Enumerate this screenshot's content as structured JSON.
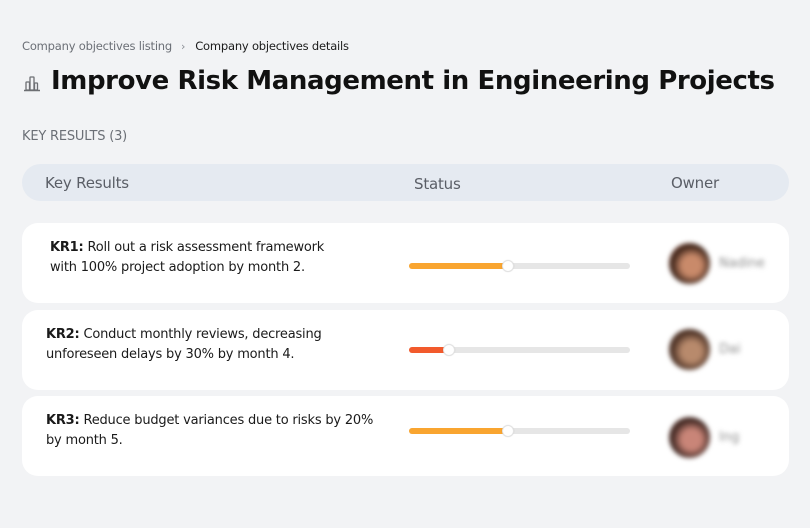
{
  "breadcrumb": {
    "parent": "Company objectives listing",
    "separator": "›",
    "current": "Company objectives details"
  },
  "objective": {
    "icon": "buildings-icon",
    "title": "Improve Risk Management in Engineering Projects"
  },
  "key_results_section": {
    "label": "KEY RESULTS (3)",
    "count": 3
  },
  "table": {
    "columns": [
      "Key Results",
      "Status",
      "Owner"
    ]
  },
  "key_results": [
    {
      "code": "KR1:",
      "text": " Roll out a risk assessment framework with 100% project adoption by month 2.",
      "progress": 45,
      "progress_color": "#f9a530",
      "owner": {
        "name": "Nadine",
        "avatar_colors": [
          "#3a2218",
          "#c98a6a",
          "#e06a40"
        ]
      }
    },
    {
      "code": "KR2:",
      "text": " Conduct monthly reviews, decreasing unforeseen delays by 30% by month 4.",
      "progress": 18,
      "progress_color": "#f25a2c",
      "owner": {
        "name": "Dai",
        "avatar_colors": [
          "#4a3024",
          "#b88a6c",
          "#7a5240"
        ]
      }
    },
    {
      "code": "KR3:",
      "text": " Reduce budget variances due to risks by 20% by month 5.",
      "progress": 45,
      "progress_color": "#f9a530",
      "owner": {
        "name": "Ing",
        "avatar_colors": [
          "#3c2520",
          "#c98578",
          "#a0604c"
        ]
      }
    }
  ],
  "colors": {
    "background": "#f2f3f5",
    "header_row": "#e5eaf1",
    "card": "#ffffff",
    "track": "#e6e6e6"
  }
}
